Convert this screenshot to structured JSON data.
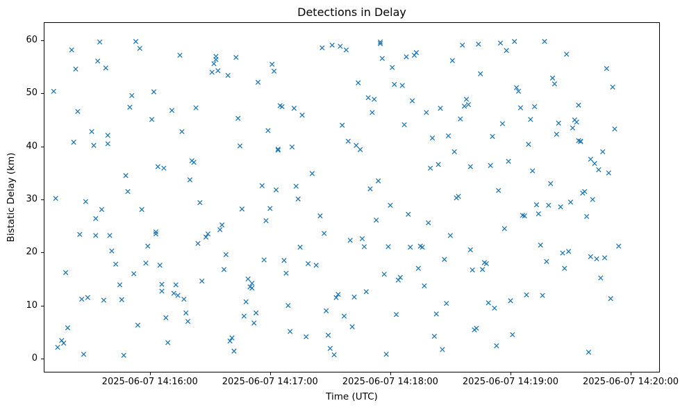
{
  "chart_data": {
    "type": "scatter",
    "title": "Detections in Delay",
    "xlabel": "Time (UTC)",
    "ylabel": "Bistatic Delay (km)",
    "marker": "x",
    "marker_color": "#1f77b4",
    "x_unit": "seconds after 2025-06-07 14:15:00 UTC",
    "xlim_seconds": [
      7.4,
      314.2
    ],
    "ylim": [
      -2.5,
      63.3
    ],
    "grid": false,
    "legend": null,
    "xticks": [
      {
        "t": 60,
        "label": "2025-06-07 14:16:00"
      },
      {
        "t": 120,
        "label": "2025-06-07 14:17:00"
      },
      {
        "t": 180,
        "label": "2025-06-07 14:18:00"
      },
      {
        "t": 240,
        "label": "2025-06-07 14:19:00"
      },
      {
        "t": 300,
        "label": "2025-06-07 14:20:00"
      }
    ],
    "yticks": [
      {
        "v": 0,
        "label": "0"
      },
      {
        "v": 10,
        "label": "10"
      },
      {
        "v": 20,
        "label": "20"
      },
      {
        "v": 30,
        "label": "30"
      },
      {
        "v": 40,
        "label": "40"
      },
      {
        "v": 50,
        "label": "50"
      },
      {
        "v": 60,
        "label": "60"
      }
    ],
    "points": [
      [
        12,
        50.4
      ],
      [
        13,
        30.2
      ],
      [
        14,
        2.1
      ],
      [
        16,
        3.4
      ],
      [
        17,
        2.9
      ],
      [
        18,
        16.2
      ],
      [
        19,
        5.8
      ],
      [
        21,
        58.2
      ],
      [
        22,
        40.8
      ],
      [
        23,
        54.6
      ],
      [
        24,
        46.6
      ],
      [
        25,
        23.4
      ],
      [
        26,
        11.2
      ],
      [
        27,
        0.8
      ],
      [
        28,
        29.6
      ],
      [
        29,
        11.5
      ],
      [
        31,
        42.8
      ],
      [
        32,
        40.2
      ],
      [
        33,
        26.4
      ],
      [
        33,
        23.2
      ],
      [
        34,
        56.1
      ],
      [
        35,
        59.7
      ],
      [
        36,
        28.1
      ],
      [
        37,
        11.0
      ],
      [
        38,
        54.8
      ],
      [
        39,
        42.1
      ],
      [
        39,
        40.5
      ],
      [
        40,
        23.2
      ],
      [
        41,
        20.3
      ],
      [
        43,
        17.8
      ],
      [
        45,
        13.9
      ],
      [
        46,
        11.1
      ],
      [
        47,
        0.6
      ],
      [
        48,
        34.5
      ],
      [
        49,
        31.5
      ],
      [
        50,
        47.4
      ],
      [
        51,
        49.6
      ],
      [
        52,
        16.0
      ],
      [
        53,
        59.8
      ],
      [
        54,
        6.3
      ],
      [
        55,
        58.5
      ],
      [
        56,
        28.1
      ],
      [
        58,
        18.0
      ],
      [
        59,
        21.2
      ],
      [
        61,
        45.1
      ],
      [
        62,
        50.3
      ],
      [
        63,
        23.9
      ],
      [
        63,
        23.5
      ],
      [
        64,
        36.2
      ],
      [
        65,
        17.6
      ],
      [
        66,
        14.0
      ],
      [
        66,
        12.7
      ],
      [
        67,
        35.9
      ],
      [
        68,
        7.7
      ],
      [
        69,
        3.0
      ],
      [
        71,
        46.8
      ],
      [
        72,
        12.3
      ],
      [
        73,
        13.9
      ],
      [
        74,
        11.9
      ],
      [
        75,
        57.2
      ],
      [
        76,
        42.8
      ],
      [
        77,
        11.2
      ],
      [
        78,
        8.6
      ],
      [
        79,
        7.0
      ],
      [
        80,
        33.7
      ],
      [
        81,
        37.3
      ],
      [
        82,
        37.0
      ],
      [
        83,
        47.3
      ],
      [
        84,
        21.7
      ],
      [
        85,
        29.4
      ],
      [
        86,
        14.6
      ],
      [
        88,
        22.9
      ],
      [
        89,
        23.5
      ],
      [
        91,
        54.0
      ],
      [
        92,
        55.6
      ],
      [
        93,
        56.4
      ],
      [
        93,
        57.0
      ],
      [
        94,
        54.3
      ],
      [
        95,
        24.3
      ],
      [
        96,
        25.2
      ],
      [
        97,
        16.8
      ],
      [
        98,
        19.6
      ],
      [
        99,
        53.4
      ],
      [
        100,
        3.3
      ],
      [
        101,
        3.9
      ],
      [
        102,
        1.4
      ],
      [
        103,
        56.8
      ],
      [
        104,
        45.3
      ],
      [
        105,
        40.1
      ],
      [
        106,
        28.2
      ],
      [
        107,
        8.0
      ],
      [
        108,
        10.7
      ],
      [
        109,
        15.0
      ],
      [
        110,
        13.5
      ],
      [
        111,
        14.2
      ],
      [
        111,
        13.3
      ],
      [
        112,
        6.7
      ],
      [
        113,
        8.6
      ],
      [
        114,
        52.1
      ],
      [
        116,
        32.6
      ],
      [
        117,
        18.6
      ],
      [
        118,
        26.0
      ],
      [
        119,
        43.0
      ],
      [
        120,
        28.3
      ],
      [
        121,
        55.5
      ],
      [
        122,
        54.2
      ],
      [
        123,
        31.8
      ],
      [
        124,
        39.3
      ],
      [
        124,
        39.5
      ],
      [
        125,
        47.7
      ],
      [
        126,
        47.5
      ],
      [
        127,
        18.5
      ],
      [
        128,
        16.1
      ],
      [
        129,
        10.0
      ],
      [
        130,
        5.1
      ],
      [
        131,
        39.9
      ],
      [
        132,
        47.2
      ],
      [
        133,
        32.5
      ],
      [
        134,
        30.1
      ],
      [
        135,
        21.0
      ],
      [
        136,
        45.9
      ],
      [
        138,
        4.1
      ],
      [
        139,
        17.9
      ],
      [
        141,
        34.9
      ],
      [
        143,
        17.6
      ],
      [
        145,
        26.9
      ],
      [
        146,
        58.6
      ],
      [
        147,
        23.6
      ],
      [
        148,
        9.0
      ],
      [
        149,
        4.4
      ],
      [
        150,
        1.9
      ],
      [
        151,
        59.1
      ],
      [
        152,
        0.7
      ],
      [
        153,
        11.5
      ],
      [
        154,
        12.1
      ],
      [
        155,
        58.9
      ],
      [
        156,
        44.0
      ],
      [
        157,
        8.0
      ],
      [
        158,
        58.2
      ],
      [
        159,
        41.0
      ],
      [
        160,
        22.3
      ],
      [
        161,
        6.0
      ],
      [
        162,
        11.6
      ],
      [
        163,
        40.2
      ],
      [
        164,
        52.0
      ],
      [
        165,
        39.4
      ],
      [
        166,
        22.6
      ],
      [
        167,
        21.1
      ],
      [
        168,
        12.6
      ],
      [
        169,
        49.2
      ],
      [
        170,
        32.0
      ],
      [
        171,
        46.4
      ],
      [
        172,
        48.9
      ],
      [
        173,
        26.1
      ],
      [
        174,
        33.5
      ],
      [
        175,
        59.4
      ],
      [
        175,
        59.7
      ],
      [
        176,
        56.6
      ],
      [
        177,
        15.9
      ],
      [
        178,
        0.8
      ],
      [
        179,
        21.1
      ],
      [
        180,
        28.9
      ],
      [
        181,
        54.9
      ],
      [
        182,
        51.7
      ],
      [
        183,
        8.3
      ],
      [
        184,
        14.8
      ],
      [
        185,
        15.3
      ],
      [
        186,
        51.5
      ],
      [
        187,
        44.1
      ],
      [
        188,
        56.9
      ],
      [
        189,
        27.2
      ],
      [
        190,
        21.0
      ],
      [
        191,
        48.6
      ],
      [
        192,
        57.2
      ],
      [
        193,
        57.7
      ],
      [
        194,
        17.0
      ],
      [
        195,
        21.2
      ],
      [
        196,
        21.0
      ],
      [
        197,
        13.7
      ],
      [
        198,
        46.4
      ],
      [
        199,
        25.6
      ],
      [
        200,
        35.9
      ],
      [
        201,
        41.6
      ],
      [
        202,
        4.2
      ],
      [
        203,
        8.4
      ],
      [
        204,
        36.6
      ],
      [
        205,
        47.2
      ],
      [
        206,
        1.7
      ],
      [
        207,
        18.7
      ],
      [
        208,
        10.4
      ],
      [
        209,
        42.0
      ],
      [
        210,
        23.2
      ],
      [
        211,
        56.2
      ],
      [
        212,
        39.0
      ],
      [
        213,
        30.3
      ],
      [
        214,
        30.6
      ],
      [
        215,
        45.2
      ],
      [
        216,
        59.1
      ],
      [
        217,
        47.6
      ],
      [
        218,
        48.9
      ],
      [
        219,
        47.9
      ],
      [
        220,
        20.5
      ],
      [
        220,
        36.2
      ],
      [
        221,
        16.7
      ],
      [
        222,
        5.4
      ],
      [
        223,
        5.7
      ],
      [
        224,
        59.3
      ],
      [
        225,
        53.7
      ],
      [
        226,
        16.8
      ],
      [
        227,
        18.1
      ],
      [
        228,
        17.9
      ],
      [
        229,
        10.5
      ],
      [
        230,
        36.4
      ],
      [
        231,
        41.9
      ],
      [
        232,
        9.5
      ],
      [
        233,
        2.4
      ],
      [
        234,
        31.7
      ],
      [
        235,
        59.5
      ],
      [
        236,
        44.3
      ],
      [
        237,
        24.5
      ],
      [
        238,
        58.1
      ],
      [
        239,
        37.2
      ],
      [
        240,
        10.9
      ],
      [
        241,
        4.5
      ],
      [
        242,
        59.8
      ],
      [
        243,
        51.1
      ],
      [
        244,
        50.4
      ],
      [
        245,
        47.3
      ],
      [
        246,
        27.0
      ],
      [
        247,
        26.9
      ],
      [
        248,
        12.0
      ],
      [
        249,
        40.4
      ],
      [
        250,
        45.1
      ],
      [
        251,
        35.4
      ],
      [
        252,
        47.5
      ],
      [
        253,
        29.0
      ],
      [
        254,
        27.3
      ],
      [
        255,
        21.4
      ],
      [
        256,
        11.9
      ],
      [
        257,
        59.8
      ],
      [
        258,
        18.3
      ],
      [
        259,
        28.9
      ],
      [
        260,
        33.0
      ],
      [
        261,
        52.9
      ],
      [
        262,
        51.8
      ],
      [
        263,
        42.3
      ],
      [
        264,
        44.4
      ],
      [
        265,
        28.6
      ],
      [
        266,
        19.9
      ],
      [
        267,
        17.0
      ],
      [
        268,
        57.4
      ],
      [
        269,
        20.2
      ],
      [
        270,
        29.5
      ],
      [
        271,
        43.5
      ],
      [
        272,
        45.0
      ],
      [
        273,
        44.6
      ],
      [
        274,
        47.8
      ],
      [
        274,
        41.1
      ],
      [
        275,
        40.9
      ],
      [
        275,
        41.0
      ],
      [
        276,
        31.2
      ],
      [
        277,
        31.5
      ],
      [
        278,
        26.8
      ],
      [
        279,
        1.2
      ],
      [
        280,
        19.2
      ],
      [
        280,
        37.6
      ],
      [
        281,
        30.0
      ],
      [
        282,
        36.8
      ],
      [
        283,
        18.8
      ],
      [
        284,
        35.6
      ],
      [
        285,
        15.2
      ],
      [
        286,
        39.0
      ],
      [
        287,
        19.0
      ],
      [
        288,
        54.7
      ],
      [
        289,
        35.0
      ],
      [
        290,
        11.3
      ],
      [
        291,
        51.2
      ],
      [
        292,
        43.3
      ],
      [
        294,
        21.2
      ]
    ]
  }
}
